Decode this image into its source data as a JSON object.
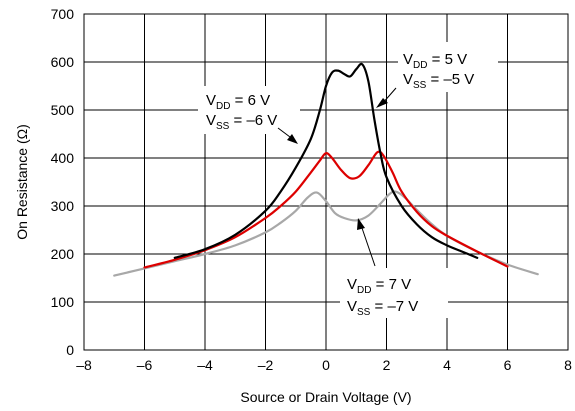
{
  "chart_data": {
    "type": "line",
    "title": "",
    "xlabel": "Source or Drain Voltage (V)",
    "ylabel": "On Resistance (Ω)",
    "xlim": [
      -8,
      8
    ],
    "ylim": [
      0,
      700
    ],
    "xticks": [
      -8,
      -6,
      -4,
      -2,
      0,
      2,
      4,
      6,
      8
    ],
    "yticks": [
      0,
      100,
      200,
      300,
      400,
      500,
      600,
      700
    ],
    "xtick_labels": [
      "–8",
      "–6",
      "–4",
      "–2",
      "0",
      "2",
      "4",
      "6",
      "8"
    ],
    "ytick_labels": [
      "0",
      "100",
      "200",
      "300",
      "400",
      "500",
      "600",
      "700"
    ],
    "grid": true,
    "legend": "none",
    "series": [
      {
        "color": "#000000",
        "x": [
          -5,
          -4,
          -3,
          -2,
          -1.5,
          -1,
          -0.5,
          -0.2,
          0,
          0.2,
          0.4,
          0.6,
          0.8,
          1.0,
          1.2,
          1.4,
          1.6,
          1.8,
          2.0,
          2.5,
          3,
          3.5,
          4,
          4.5,
          5
        ],
        "y": [
          192,
          210,
          240,
          290,
          330,
          380,
          440,
          500,
          550,
          578,
          582,
          575,
          570,
          585,
          595,
          560,
          480,
          410,
          360,
          300,
          262,
          235,
          218,
          205,
          192
        ]
      },
      {
        "color": "#dd0000",
        "x": [
          -6,
          -5,
          -4,
          -3,
          -2,
          -1.5,
          -1,
          -0.5,
          -0.2,
          0,
          0.2,
          0.5,
          0.8,
          1.1,
          1.4,
          1.7,
          1.9,
          2.2,
          2.5,
          3,
          3.5,
          4,
          5,
          6
        ],
        "y": [
          172,
          188,
          208,
          235,
          275,
          300,
          330,
          370,
          395,
          410,
          400,
          375,
          358,
          362,
          385,
          412,
          405,
          370,
          330,
          288,
          258,
          238,
          205,
          174
        ]
      },
      {
        "color": "#a8a8a8",
        "x": [
          -7,
          -6,
          -5,
          -4,
          -3,
          -2,
          -1.5,
          -1,
          -0.6,
          -0.3,
          0,
          0.3,
          0.6,
          1.0,
          1.4,
          1.8,
          2.1,
          2.3,
          2.6,
          3,
          3.5,
          4,
          5,
          6,
          7
        ],
        "y": [
          155,
          170,
          185,
          200,
          218,
          245,
          265,
          290,
          318,
          328,
          310,
          285,
          275,
          270,
          280,
          305,
          325,
          330,
          318,
          292,
          262,
          238,
          205,
          178,
          158
        ]
      }
    ],
    "annotations": [
      {
        "vdd": {
          "a": "V",
          "sub": "DD",
          "b": " = 5 V"
        },
        "vss": {
          "a": "V",
          "sub": "SS",
          "b": " = –5 V"
        }
      },
      {
        "vdd": {
          "a": "V",
          "sub": "DD",
          "b": " = 6 V"
        },
        "vss": {
          "a": "V",
          "sub": "SS",
          "b": " = –6 V"
        }
      },
      {
        "vdd": {
          "a": "V",
          "sub": "DD",
          "b": " = 7 V"
        },
        "vss": {
          "a": "V",
          "sub": "SS",
          "b": " = –7 V"
        }
      }
    ]
  }
}
